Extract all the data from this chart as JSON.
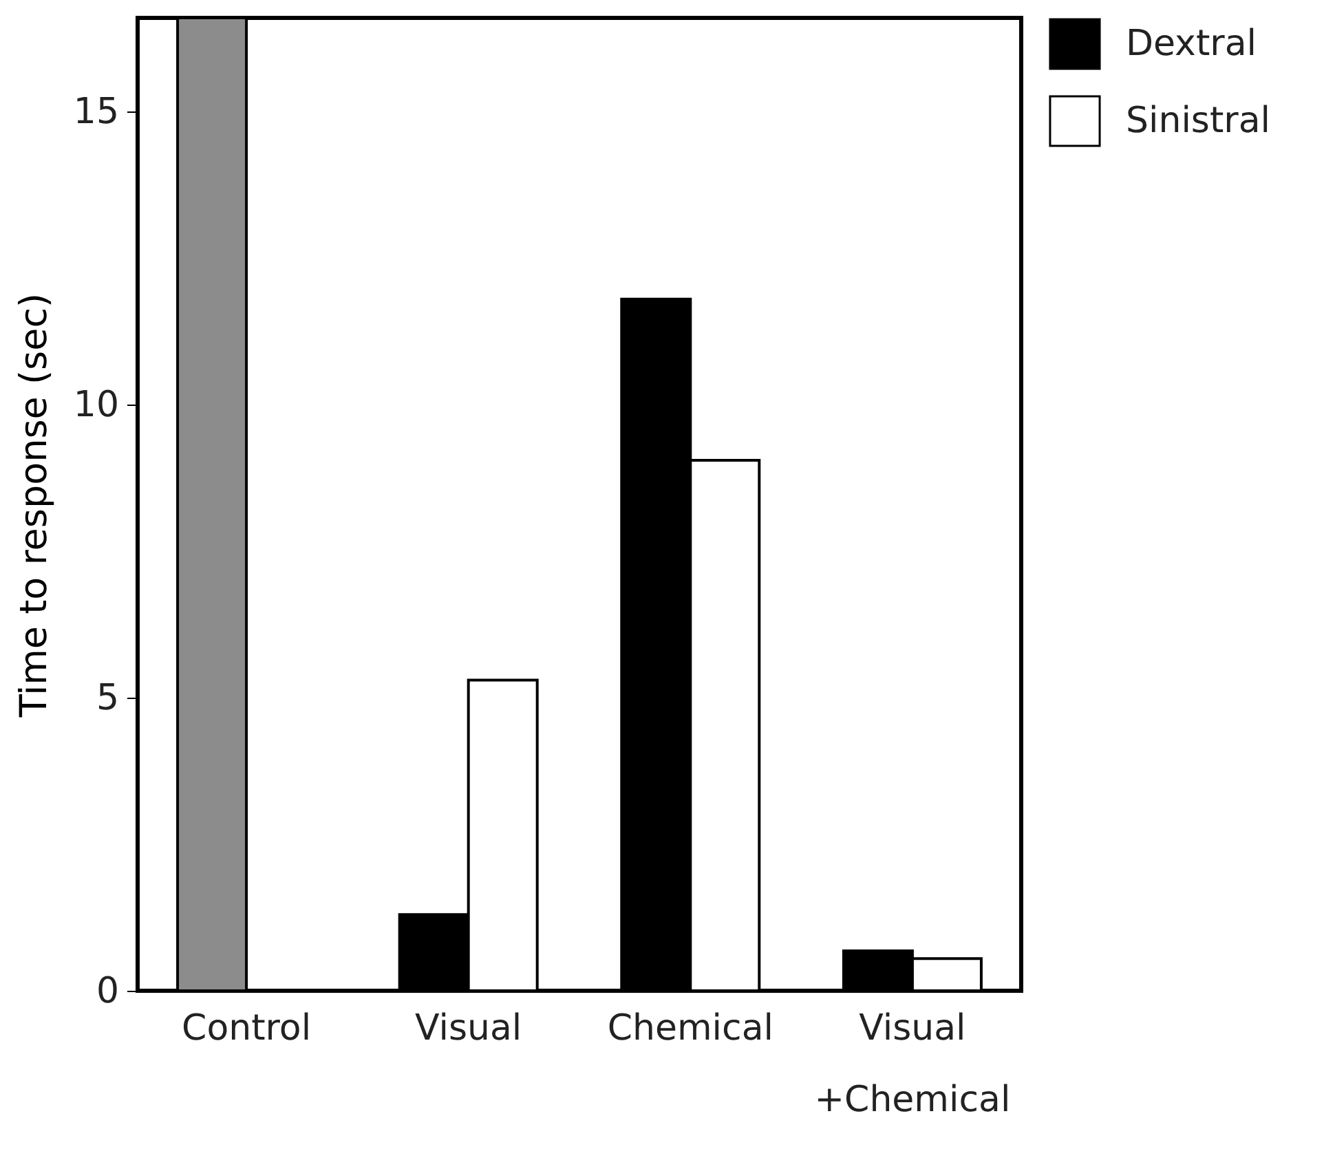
{
  "chart_data": {
    "type": "bar",
    "ylabel": "Time to response (sec)",
    "categories": [
      "Control",
      "Visual",
      "Chemical",
      "Visual\n+Chemical"
    ],
    "series": [
      {
        "name": "Dextral",
        "color": "#000000",
        "colors": [
          "#8c8c8c",
          "#000000",
          "#000000",
          "#000000"
        ],
        "values": [
          16.6,
          1.3,
          11.8,
          0.68
        ]
      },
      {
        "name": "Sinistral",
        "color": "#ffffff",
        "values": [
          null,
          5.3,
          9.05,
          0.55
        ]
      }
    ],
    "ylim": [
      0,
      16.6
    ],
    "yticks": [
      0,
      5,
      10,
      15
    ],
    "grid": false,
    "legend": "top right"
  }
}
